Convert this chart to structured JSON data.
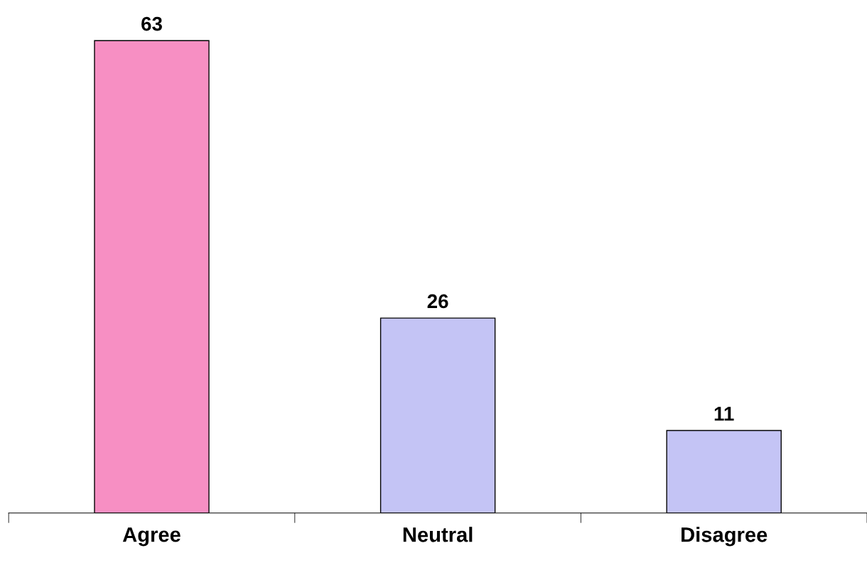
{
  "chart_data": {
    "type": "bar",
    "categories": [
      "Agree",
      "Neutral",
      "Disagree"
    ],
    "values": [
      63,
      26,
      11
    ],
    "colors": [
      "#f78fc3",
      "#c4c4f5",
      "#c4c4f5"
    ],
    "data_labels": true
  }
}
